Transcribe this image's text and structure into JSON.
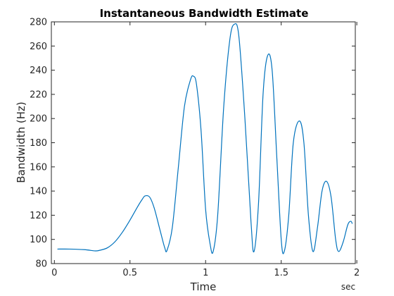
{
  "chart_data": {
    "type": "line",
    "title": "Instantaneous Bandwidth Estimate",
    "xlabel": "Time",
    "xunit": "sec",
    "ylabel": "Bandwidth (Hz)",
    "xlim": [
      -0.02,
      1.99
    ],
    "ylim": [
      80,
      280
    ],
    "xticks": [
      0,
      0.5,
      1,
      1.5,
      2
    ],
    "xtick_labels": [
      "0",
      "0.5",
      "1",
      "1.5",
      "2"
    ],
    "yticks": [
      80,
      100,
      120,
      140,
      160,
      180,
      200,
      220,
      240,
      260,
      280
    ],
    "ytick_labels": [
      "80",
      "100",
      "120",
      "140",
      "160",
      "180",
      "200",
      "220",
      "240",
      "260",
      "280"
    ],
    "grid": false,
    "line_color": "#0072BD",
    "series": [
      {
        "x": [
          0.02,
          0.1,
          0.2,
          0.27,
          0.3,
          0.35,
          0.4,
          0.45,
          0.5,
          0.55,
          0.58,
          0.6,
          0.63,
          0.66,
          0.7,
          0.73,
          0.745,
          0.78,
          0.82,
          0.86,
          0.9,
          0.92,
          0.94,
          0.97,
          1.0,
          1.03,
          1.05,
          1.08,
          1.12,
          1.16,
          1.19,
          1.22,
          1.26,
          1.3,
          1.32,
          1.35,
          1.38,
          1.41,
          1.44,
          1.47,
          1.5,
          1.52,
          1.55,
          1.58,
          1.62,
          1.65,
          1.68,
          1.71,
          1.74,
          1.77,
          1.8,
          1.83,
          1.86,
          1.88,
          1.91,
          1.94,
          1.96,
          1.97
        ],
        "y": [
          92,
          92,
          91.5,
          90.5,
          91,
          93,
          98,
          106,
          116,
          127,
          133,
          136,
          135,
          126,
          107,
          93,
          91,
          110,
          160,
          210,
          232,
          235,
          228,
          190,
          125,
          96,
          90,
          120,
          210,
          265,
          278,
          268,
          200,
          115,
          90,
          130,
          220,
          252,
          240,
          170,
          100,
          90,
          120,
          180,
          198,
          180,
          120,
          90,
          110,
          140,
          148,
          135,
          100,
          90,
          98,
          112,
          115,
          113
        ]
      }
    ]
  }
}
